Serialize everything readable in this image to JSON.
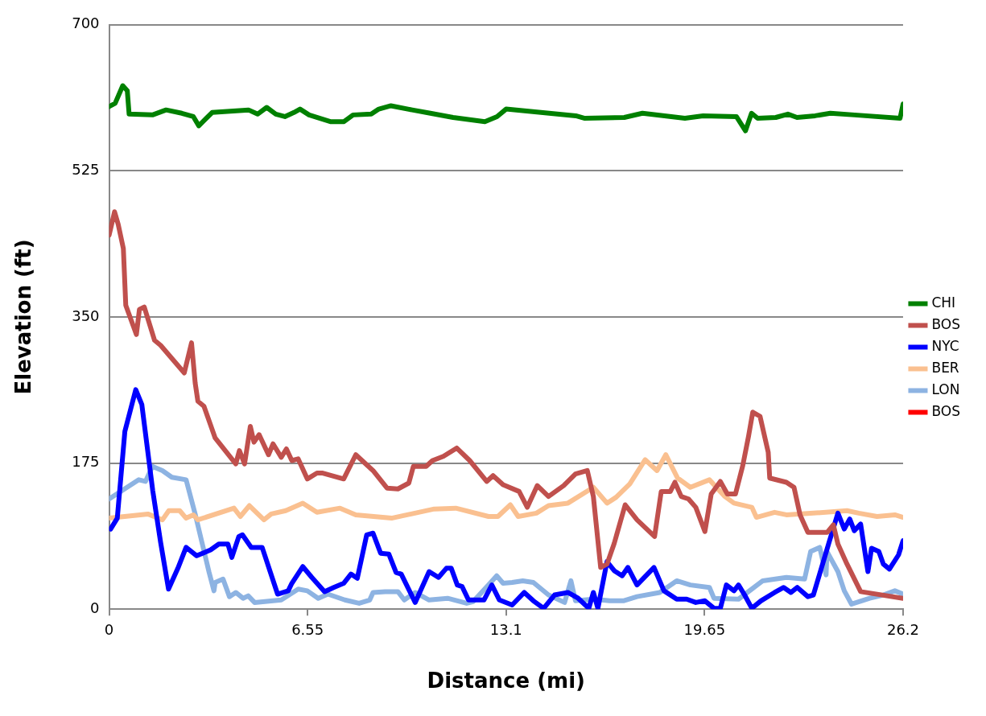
{
  "chart_data": {
    "type": "line",
    "xlabel": "Distance (mi)",
    "ylabel": "Elevation (ft)",
    "xlim": [
      0,
      26.2
    ],
    "xticks": [
      0,
      6.55,
      13.1,
      19.65,
      26.2
    ],
    "ylim": [
      0,
      700
    ],
    "yticks": [
      0,
      175,
      350,
      525,
      700
    ],
    "grid": "y",
    "legend": "right",
    "marker": "none",
    "line_style": "solid",
    "series": [
      {
        "name": "CHI",
        "color": "#008000",
        "x": [
          0,
          0.2,
          0.45,
          0.6,
          0.66,
          1.43,
          1.88,
          2.4,
          2.78,
          2.96,
          3.4,
          4.6,
          4.9,
          5.2,
          5.5,
          5.8,
          6.1,
          6.3,
          6.6,
          7.3,
          7.75,
          8.05,
          8.65,
          8.9,
          9.3,
          10,
          10.6,
          11.35,
          12.4,
          12.8,
          13.1,
          15.4,
          15.7,
          17,
          17.6,
          19,
          19.6,
          20.7,
          21,
          21.2,
          21.4,
          22,
          22.4,
          22.7,
          23.3,
          23.8,
          24.6,
          26.1,
          26.2
        ],
        "values": [
          602,
          606,
          627,
          621,
          593,
          592,
          598,
          594,
          590,
          579,
          595,
          598,
          593,
          601,
          593,
          590,
          595,
          599,
          592,
          584,
          584,
          592,
          593,
          599,
          603,
          598,
          594,
          589,
          584,
          590,
          599,
          591,
          588,
          589,
          594,
          588,
          591,
          590,
          573,
          594,
          588,
          589,
          593,
          589,
          591,
          594,
          592,
          588,
          605
        ]
      },
      {
        "name": "BOS",
        "color": "#c0504d",
        "x": [
          0,
          0.18,
          0.3,
          0.47,
          0.55,
          0.9,
          1,
          1.16,
          1.5,
          1.7,
          2.48,
          2.72,
          2.84,
          2.93,
          3.13,
          3.5,
          4.18,
          4.3,
          4.47,
          4.66,
          4.78,
          4.95,
          5.26,
          5.41,
          5.68,
          5.85,
          6.03,
          6.24,
          6.54,
          6.86,
          7.05,
          7.74,
          8.14,
          8.71,
          9.17,
          9.53,
          9.89,
          10.04,
          10.46,
          10.67,
          11.03,
          11.47,
          11.9,
          12.46,
          12.67,
          13,
          13.53,
          13.8,
          14.13,
          14.5,
          15,
          15.39,
          15.78,
          15.98,
          16.22,
          16.43,
          16.67,
          17.03,
          17.42,
          18,
          18.22,
          18.52,
          18.67,
          18.88,
          19.12,
          19.36,
          19.66,
          19.87,
          20.17,
          20.4,
          20.67,
          20.91,
          21.1,
          21.24,
          21.48,
          21.75,
          21.8,
          22.35,
          22.6,
          22.8,
          23.06,
          23.7,
          23.9,
          24.05,
          24.35,
          24.8,
          26.2
        ],
        "values": [
          448,
          476,
          461,
          432,
          364,
          329,
          359,
          362,
          322,
          316,
          283,
          319,
          271,
          249,
          243,
          205,
          174,
          190,
          174,
          219,
          200,
          209,
          185,
          198,
          182,
          192,
          178,
          180,
          156,
          163,
          163,
          156,
          185,
          166,
          145,
          144,
          151,
          171,
          171,
          178,
          183,
          193,
          178,
          153,
          160,
          149,
          141,
          122,
          148,
          135,
          148,
          162,
          166,
          135,
          50,
          54,
          79,
          125,
          107,
          87,
          141,
          141,
          152,
          135,
          132,
          122,
          93,
          138,
          153,
          138,
          138,
          172,
          207,
          236,
          231,
          188,
          157,
          152,
          146,
          113,
          92,
          92,
          101,
          78,
          54,
          21,
          13
        ]
      },
      {
        "name": "NYC",
        "color": "#0000ff",
        "x": [
          0.05,
          0.27,
          0.52,
          0.88,
          1.08,
          1.44,
          1.7,
          1.96,
          2.27,
          2.54,
          2.89,
          3.35,
          3.62,
          3.92,
          4.05,
          4.28,
          4.4,
          4.69,
          5.05,
          5.56,
          5.91,
          6.03,
          6.39,
          6.69,
          7.11,
          7.41,
          7.74,
          7.98,
          8.19,
          8.5,
          8.71,
          8.96,
          9.23,
          9.47,
          9.64,
          10.1,
          10.56,
          10.87,
          11.13,
          11.29,
          11.49,
          11.65,
          11.86,
          12.37,
          12.63,
          12.88,
          13.3,
          13.7,
          14,
          14.34,
          14.7,
          15.14,
          15.48,
          15.83,
          15.98,
          16.13,
          16.43,
          16.67,
          16.93,
          17.12,
          17.42,
          17.98,
          18.31,
          18.73,
          19.06,
          19.36,
          19.66,
          19.96,
          20.17,
          20.37,
          20.62,
          20.77,
          20.97,
          21.21,
          21.51,
          21.96,
          22.26,
          22.5,
          22.71,
          23.06,
          23.24,
          23.75,
          24.05,
          24.26,
          24.44,
          24.59,
          24.8,
          25.04,
          25.16,
          25.4,
          25.55,
          25.75,
          26.05,
          26.2
        ],
        "values": [
          96,
          109,
          213,
          263,
          245,
          142,
          80,
          24,
          49,
          74,
          64,
          71,
          78,
          78,
          62,
          87,
          89,
          74,
          74,
          18,
          22,
          31,
          51,
          38,
          21,
          26,
          31,
          42,
          37,
          89,
          91,
          67,
          66,
          44,
          42,
          8,
          45,
          38,
          49,
          49,
          29,
          27,
          11,
          11,
          29,
          11,
          5,
          20,
          10,
          1,
          17,
          20,
          13,
          1,
          20,
          1,
          57,
          46,
          40,
          50,
          29,
          50,
          22,
          12,
          12,
          8,
          10,
          1,
          1,
          29,
          22,
          29,
          17,
          1,
          10,
          20,
          26,
          20,
          26,
          15,
          17,
          79,
          115,
          96,
          108,
          94,
          102,
          45,
          73,
          69,
          54,
          48,
          65,
          82
        ]
      },
      {
        "name": "BER",
        "color": "#fac090",
        "x": [
          0,
          1.28,
          1.76,
          1.97,
          2.33,
          2.54,
          2.78,
          2.93,
          4.12,
          4.33,
          4.63,
          5.11,
          5.35,
          5.83,
          6.39,
          6.86,
          7.62,
          8.14,
          9.32,
          10.73,
          11.44,
          12.52,
          12.83,
          13.24,
          13.5,
          14.1,
          14.5,
          15.14,
          15.98,
          16.43,
          16.73,
          17.18,
          17.69,
          18.08,
          18.37,
          18.76,
          19.18,
          19.81,
          20.32,
          20.62,
          21.21,
          21.36,
          21.96,
          22.35,
          23.24,
          24.35,
          24.74,
          25.34,
          25.93,
          26.2
        ],
        "values": [
          109,
          114,
          107,
          118,
          118,
          109,
          113,
          107,
          121,
          111,
          124,
          107,
          114,
          118,
          127,
          116,
          121,
          113,
          109,
          120,
          121,
          111,
          111,
          125,
          111,
          115,
          124,
          127,
          146,
          127,
          134,
          150,
          179,
          166,
          185,
          157,
          146,
          155,
          135,
          127,
          122,
          110,
          116,
          113,
          115,
          118,
          115,
          111,
          113,
          110
        ]
      },
      {
        "name": "LON",
        "color": "#8db3e2",
        "x": [
          0,
          0.98,
          1.2,
          1.43,
          1.76,
          2.07,
          2.54,
          2.84,
          3.3,
          3.46,
          3.5,
          3.76,
          3.97,
          4.18,
          4.42,
          4.59,
          4.8,
          5.68,
          6.24,
          6.54,
          6.9,
          7.22,
          7.78,
          8.25,
          8.6,
          8.71,
          9.11,
          9.53,
          9.74,
          10.1,
          10.56,
          11.17,
          11.8,
          12.01,
          12.52,
          12.79,
          13,
          13.3,
          13.65,
          14,
          14.5,
          15.03,
          15.24,
          15.39,
          15.98,
          16.52,
          16.97,
          17.42,
          18.17,
          18.73,
          19.18,
          19.81,
          19.96,
          20.77,
          21.57,
          22.35,
          22.95,
          23.15,
          23.45,
          23.66,
          23.69,
          24.05,
          24.26,
          24.5,
          25.1,
          25.55,
          25.93,
          26.2
        ],
        "values": [
          132,
          155,
          153,
          171,
          166,
          158,
          155,
          114,
          44,
          22,
          32,
          36,
          15,
          20,
          13,
          16,
          8,
          11,
          24,
          22,
          13,
          18,
          11,
          7,
          11,
          20,
          21,
          21,
          11,
          20,
          11,
          13,
          7,
          9,
          29,
          40,
          31,
          32,
          34,
          32,
          17,
          8,
          34,
          10,
          12,
          10,
          10,
          15,
          20,
          34,
          29,
          26,
          13,
          12,
          34,
          38,
          36,
          69,
          74,
          41,
          69,
          45,
          22,
          6,
          13,
          17,
          22,
          18
        ]
      },
      {
        "name": "BOS",
        "color": "#ff0000"
      }
    ]
  }
}
